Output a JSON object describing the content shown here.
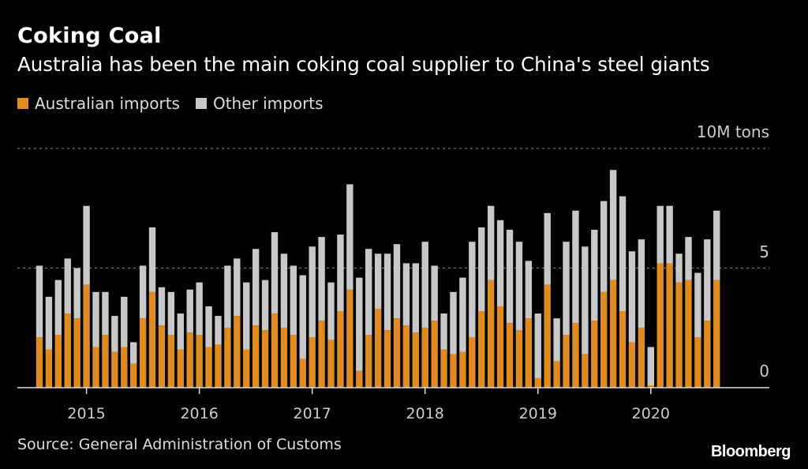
{
  "chart_data": {
    "type": "bar",
    "stacked": true,
    "title": "Coking Coal",
    "subtitle": "Australia has been the main coking coal supplier to China's steel giants",
    "unit_label": "10M tons",
    "ylim": [
      0,
      10
    ],
    "yticks": [
      "0",
      "5",
      "10M tons"
    ],
    "ytick_values": [
      0,
      5,
      10
    ],
    "xticks": [
      "2015",
      "2016",
      "2017",
      "2018",
      "2019",
      "2020"
    ],
    "x_start": "2014-08",
    "x_end": "2020-08",
    "grid": true,
    "legend_position": "top-left",
    "series": [
      {
        "name": "Australian imports",
        "color": "#E08A22",
        "values": [
          2.1,
          1.6,
          2.2,
          3.1,
          2.9,
          4.3,
          1.7,
          2.2,
          1.5,
          1.7,
          1.0,
          2.9,
          4.0,
          2.6,
          2.2,
          1.6,
          2.3,
          2.2,
          1.7,
          1.8,
          2.5,
          3.0,
          1.6,
          2.6,
          2.4,
          3.1,
          2.5,
          2.2,
          1.2,
          2.1,
          2.8,
          2.0,
          3.2,
          4.1,
          0.7,
          2.2,
          3.3,
          2.4,
          2.9,
          2.6,
          2.3,
          2.5,
          2.8,
          1.6,
          1.4,
          1.5,
          2.1,
          3.2,
          4.5,
          3.4,
          2.7,
          2.4,
          2.9,
          0.4,
          4.3,
          1.1,
          2.2,
          2.7,
          1.4,
          2.8,
          4.0,
          4.5,
          3.2,
          1.9,
          2.5,
          0.1,
          5.2,
          5.2,
          4.4,
          4.5,
          2.1,
          2.8,
          4.5
        ]
      },
      {
        "name": "Other imports",
        "color": "#C8C8C8",
        "values": [
          3.0,
          2.2,
          2.3,
          2.3,
          2.1,
          3.3,
          2.3,
          1.8,
          1.5,
          2.1,
          0.9,
          2.2,
          2.7,
          1.6,
          1.8,
          1.5,
          1.8,
          2.2,
          1.7,
          1.2,
          2.6,
          2.4,
          2.8,
          3.2,
          2.1,
          3.4,
          3.1,
          2.9,
          3.5,
          3.8,
          3.5,
          2.4,
          3.2,
          4.4,
          3.9,
          3.6,
          2.3,
          3.2,
          3.1,
          2.6,
          2.9,
          3.6,
          2.3,
          1.5,
          2.6,
          3.1,
          4.0,
          3.5,
          3.1,
          3.6,
          3.9,
          3.7,
          2.4,
          2.7,
          3.0,
          1.8,
          3.9,
          4.7,
          4.5,
          3.8,
          3.8,
          4.6,
          4.8,
          3.8,
          3.7,
          1.6,
          2.4,
          2.4,
          1.2,
          1.8,
          2.7,
          3.4,
          2.9
        ]
      }
    ]
  },
  "source": "Source: General Administration of Customs",
  "logo": "Bloomberg"
}
